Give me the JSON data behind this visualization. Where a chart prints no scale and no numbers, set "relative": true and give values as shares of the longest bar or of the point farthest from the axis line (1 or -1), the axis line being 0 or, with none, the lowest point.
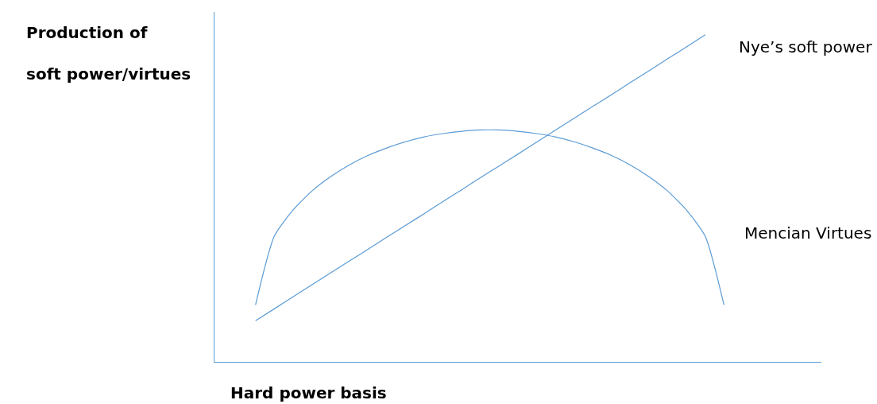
{
  "chart_data": {
    "type": "line",
    "relative": true,
    "xlabel": "Hard power basis",
    "ylabel": "Production of\nsoft power/virtues",
    "legend": false,
    "marker": "none",
    "line_style": "solid",
    "categories": [
      null,
      null,
      null,
      null,
      null,
      null,
      null,
      null,
      null,
      null,
      null,
      null,
      null,
      null,
      null,
      null,
      null,
      null,
      null,
      null,
      null,
      null,
      null,
      null,
      null,
      null
    ],
    "series": [
      {
        "name": "Nye’s soft power",
        "color": "#5b9bd5",
        "values": [
          0.126,
          0.162,
          0.199,
          0.235,
          0.272,
          0.308,
          0.344,
          0.381,
          0.417,
          0.453,
          0.49,
          0.526,
          0.563,
          0.599,
          0.635,
          0.672,
          0.708,
          0.745,
          0.781,
          0.817,
          0.854,
          0.89,
          0.927,
          0.963,
          1.0,
          null
        ]
      },
      {
        "name": "Mencian Virtues",
        "color": "#5b9bd5",
        "values": [
          0.174,
          0.384,
          0.464,
          0.522,
          0.566,
          0.602,
          0.631,
          0.654,
          0.673,
          0.688,
          0.698,
          0.705,
          0.709,
          0.709,
          0.705,
          0.698,
          0.688,
          0.673,
          0.654,
          0.631,
          0.602,
          0.566,
          0.522,
          0.464,
          0.384,
          0.174
        ]
      }
    ]
  }
}
